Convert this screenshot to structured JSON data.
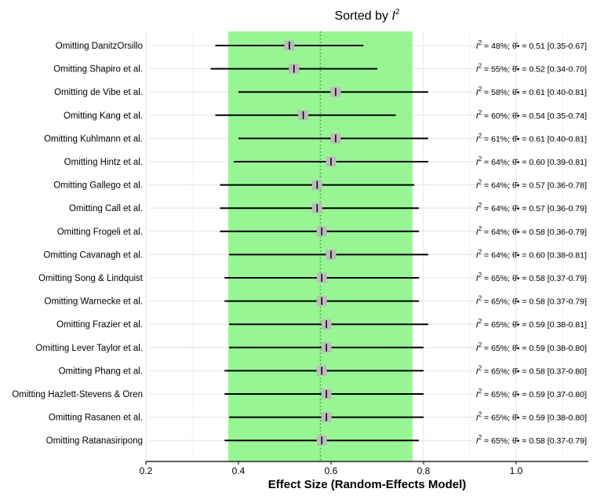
{
  "chart_data": {
    "type": "forest",
    "title": "Sorted by I²",
    "title_main": "Sorted by ",
    "title_italic": "I",
    "title_sup": "2",
    "xlabel": "Effect Size (Random-Effects Model)",
    "xlim": [
      0.2,
      1.15
    ],
    "xticks": [
      0.2,
      0.4,
      0.6,
      0.8,
      1.0
    ],
    "xtick_labels": [
      "0.2",
      "0.4",
      "0.6",
      "0.8",
      "1.0"
    ],
    "overall_band": [
      0.378,
      0.776
    ],
    "reference_line": 0.577,
    "colors": {
      "band": "#98F593",
      "reference": "#2E9E3A",
      "box": "#BBBBBB",
      "ci": "#000000",
      "grid": "#E6E6E6"
    },
    "rows": [
      {
        "label": "Omitting DanitzOrsillo",
        "est": 0.51,
        "lo": 0.35,
        "hi": 0.67,
        "i2": 48,
        "stat": "= 48%; θ̂• = 0.51 [0.35-0.67]"
      },
      {
        "label": "Omitting Shapiro et al.",
        "est": 0.52,
        "lo": 0.34,
        "hi": 0.7,
        "i2": 55,
        "stat": "= 55%; θ̂• = 0.52 [0.34-0.70]"
      },
      {
        "label": "Omitting de Vibe et al.",
        "est": 0.61,
        "lo": 0.4,
        "hi": 0.81,
        "i2": 58,
        "stat": "= 58%; θ̂• = 0.61 [0.40-0.81]"
      },
      {
        "label": "Omitting Kang et al.",
        "est": 0.54,
        "lo": 0.35,
        "hi": 0.74,
        "i2": 60,
        "stat": "= 60%; θ̂• = 0.54 [0.35-0.74]"
      },
      {
        "label": "Omitting Kuhlmann et al.",
        "est": 0.61,
        "lo": 0.4,
        "hi": 0.81,
        "i2": 61,
        "stat": "= 61%; θ̂• = 0.61 [0.40-0.81]"
      },
      {
        "label": "Omitting Hintz et al.",
        "est": 0.6,
        "lo": 0.39,
        "hi": 0.81,
        "i2": 64,
        "stat": "= 64%; θ̂• = 0.60 [0.39-0.81]"
      },
      {
        "label": "Omitting Gallego et al.",
        "est": 0.57,
        "lo": 0.36,
        "hi": 0.78,
        "i2": 64,
        "stat": "= 64%; θ̂• = 0.57 [0.36-0.78]"
      },
      {
        "label": "Omitting Call et al.",
        "est": 0.57,
        "lo": 0.36,
        "hi": 0.79,
        "i2": 64,
        "stat": "= 64%; θ̂• = 0.57 [0.36-0.79]"
      },
      {
        "label": "Omitting Frogeli et al.",
        "est": 0.58,
        "lo": 0.36,
        "hi": 0.79,
        "i2": 64,
        "stat": "= 64%; θ̂• = 0.58 [0.36-0.79]"
      },
      {
        "label": "Omitting Cavanagh et al.",
        "est": 0.6,
        "lo": 0.38,
        "hi": 0.81,
        "i2": 64,
        "stat": "= 64%; θ̂• = 0.60 [0.38-0.81]"
      },
      {
        "label": "Omitting Song & Lindquist",
        "est": 0.58,
        "lo": 0.37,
        "hi": 0.79,
        "i2": 65,
        "stat": "= 65%; θ̂• = 0.58 [0.37-0.79]"
      },
      {
        "label": "Omitting Warnecke et al.",
        "est": 0.58,
        "lo": 0.37,
        "hi": 0.79,
        "i2": 65,
        "stat": "= 65%; θ̂• = 0.58 [0.37-0.79]"
      },
      {
        "label": "Omitting Frazier et al.",
        "est": 0.59,
        "lo": 0.38,
        "hi": 0.81,
        "i2": 65,
        "stat": "= 65%; θ̂• = 0.59 [0.38-0.81]"
      },
      {
        "label": "Omitting Lever Taylor et al.",
        "est": 0.59,
        "lo": 0.38,
        "hi": 0.8,
        "i2": 65,
        "stat": "= 65%; θ̂• = 0.59 [0.38-0.80]"
      },
      {
        "label": "Omitting Phang et al.",
        "est": 0.58,
        "lo": 0.37,
        "hi": 0.8,
        "i2": 65,
        "stat": "= 65%; θ̂• = 0.58 [0.37-0.80]"
      },
      {
        "label": "Omitting Hazlett-Stevens & Oren",
        "est": 0.59,
        "lo": 0.37,
        "hi": 0.8,
        "i2": 65,
        "stat": "= 65%; θ̂• = 0.59 [0.37-0.80]"
      },
      {
        "label": "Omitting Rasanen et al.",
        "est": 0.59,
        "lo": 0.38,
        "hi": 0.8,
        "i2": 65,
        "stat": "= 65%; θ̂• = 0.59 [0.38-0.80]"
      },
      {
        "label": "Omitting Ratanasiripong",
        "est": 0.58,
        "lo": 0.37,
        "hi": 0.79,
        "i2": 65,
        "stat": "= 65%; θ̂• = 0.58 [0.37-0.79]"
      }
    ],
    "stat_prefix_italic": "I",
    "stat_prefix_sup": "2"
  }
}
